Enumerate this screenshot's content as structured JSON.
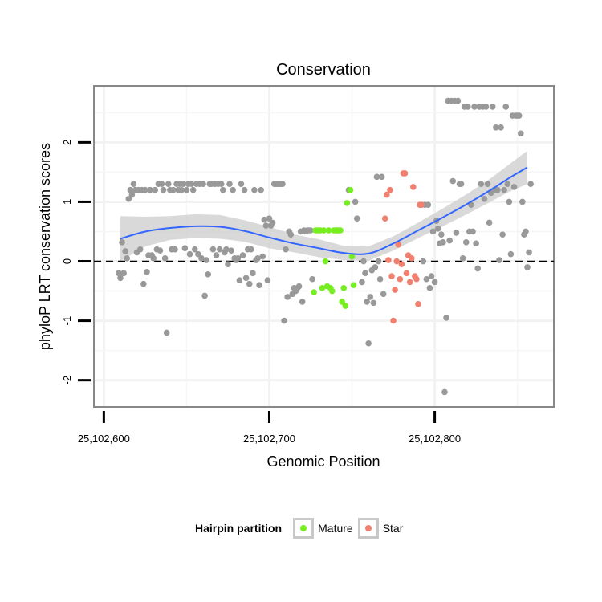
{
  "chart_data": {
    "type": "scatter",
    "title": "Conservation",
    "xlabel": "Genomic Position",
    "ylabel": "phyloP LRT conservation scores",
    "xlim": [
      25102594,
      25102872
    ],
    "ylim": [
      -2.45,
      2.95
    ],
    "x_ticks": [
      {
        "value": 25102600,
        "label": "25,102,600"
      },
      {
        "value": 25102700,
        "label": "25,102,700"
      },
      {
        "value": 25102800,
        "label": "25,102,800"
      }
    ],
    "y_ticks": [
      {
        "value": -2,
        "label": "-2"
      },
      {
        "value": -1,
        "label": "-1"
      },
      {
        "value": 0,
        "label": "0"
      },
      {
        "value": 1,
        "label": "1"
      },
      {
        "value": 2,
        "label": "2"
      }
    ],
    "reference_line": {
      "y": 0,
      "style": "dashed"
    },
    "colors": {
      "other": "#999999",
      "mature": "#77ee22",
      "star": "#f08070",
      "smooth": "#3366ff",
      "ribbon": "#cccccc",
      "panel_border": "#888888"
    },
    "series": [
      {
        "group": "other",
        "points": [
          [
            25102609,
            -0.2
          ],
          [
            25102610,
            -0.28
          ],
          [
            25102611,
            0.32
          ],
          [
            25102612,
            -0.2
          ],
          [
            25102613,
            0.17
          ],
          [
            25102614,
            0.05
          ],
          [
            25102615,
            1.05
          ],
          [
            25102616,
            1.2
          ],
          [
            25102617,
            1.12
          ],
          [
            25102618,
            1.3
          ],
          [
            25102619,
            1.2
          ],
          [
            25102620,
            0.15
          ],
          [
            25102621,
            1.2
          ],
          [
            25102622,
            0.2
          ],
          [
            25102623,
            1.2
          ],
          [
            25102624,
            -0.38
          ],
          [
            25102625,
            1.2
          ],
          [
            25102626,
            -0.18
          ],
          [
            25102627,
            0.1
          ],
          [
            25102628,
            1.2
          ],
          [
            25102629,
            0.1
          ],
          [
            25102630,
            0.05
          ],
          [
            25102631,
            1.2
          ],
          [
            25102632,
            0.2
          ],
          [
            25102633,
            1.3
          ],
          [
            25102634,
            0.18
          ],
          [
            25102635,
            1.3
          ],
          [
            25102636,
            1.2
          ],
          [
            25102637,
            0.05
          ],
          [
            25102638,
            -1.2
          ],
          [
            25102639,
            1.3
          ],
          [
            25102640,
            1.2
          ],
          [
            25102641,
            0.2
          ],
          [
            25102642,
            1.2
          ],
          [
            25102643,
            0.2
          ],
          [
            25102644,
            1.3
          ],
          [
            25102645,
            1.2
          ],
          [
            25102646,
            1.3
          ],
          [
            25102647,
            1.2
          ],
          [
            25102648,
            1.3
          ],
          [
            25102649,
            0.22
          ],
          [
            25102650,
            1.2
          ],
          [
            25102651,
            1.3
          ],
          [
            25102652,
            0.12
          ],
          [
            25102653,
            1.3
          ],
          [
            25102654,
            1.2
          ],
          [
            25102655,
            0.2
          ],
          [
            25102656,
            1.3
          ],
          [
            25102657,
            0.12
          ],
          [
            25102658,
            1.3
          ],
          [
            25102659,
            0.05
          ],
          [
            25102660,
            1.3
          ],
          [
            25102661,
            -0.58
          ],
          [
            25102662,
            0.02
          ],
          [
            25102663,
            -0.22
          ],
          [
            25102664,
            1.3
          ],
          [
            25102665,
            1.3
          ],
          [
            25102666,
            0.2
          ],
          [
            25102667,
            1.3
          ],
          [
            25102668,
            0.1
          ],
          [
            25102669,
            1.3
          ],
          [
            25102670,
            0.2
          ],
          [
            25102671,
            1.3
          ],
          [
            25102672,
            1.2
          ],
          [
            25102673,
            0.15
          ],
          [
            25102674,
            0.2
          ],
          [
            25102675,
            -0.05
          ],
          [
            25102676,
            1.3
          ],
          [
            25102677,
            0.18
          ],
          [
            25102678,
            1.2
          ],
          [
            25102679,
            0.05
          ],
          [
            25102680,
            0.02
          ],
          [
            25102681,
            0.05
          ],
          [
            25102682,
            -0.32
          ],
          [
            25102683,
            1.3
          ],
          [
            25102684,
            0.1
          ],
          [
            25102685,
            1.2
          ],
          [
            25102686,
            -0.28
          ],
          [
            25102687,
            0.2
          ],
          [
            25102688,
            -0.38
          ],
          [
            25102689,
            0.2
          ],
          [
            25102690,
            -0.2
          ],
          [
            25102691,
            1.2
          ],
          [
            25102692,
            0.02
          ],
          [
            25102693,
            0.05
          ],
          [
            25102694,
            -0.4
          ],
          [
            25102695,
            1.2
          ],
          [
            25102696,
            0.08
          ],
          [
            25102697,
            0.7
          ],
          [
            25102698,
            0.6
          ],
          [
            25102699,
            -0.32
          ],
          [
            25102700,
            0.72
          ],
          [
            25102701,
            0.6
          ],
          [
            25102702,
            0.65
          ],
          [
            25102703,
            1.3
          ],
          [
            25102704,
            1.3
          ],
          [
            25102705,
            1.3
          ],
          [
            25102706,
            1.3
          ],
          [
            25102707,
            1.3
          ],
          [
            25102708,
            1.3
          ],
          [
            25102709,
            -1.0
          ],
          [
            25102710,
            0.2
          ],
          [
            25102711,
            -0.6
          ],
          [
            25102712,
            0.5
          ],
          [
            25102713,
            0.45
          ],
          [
            25102714,
            -0.55
          ],
          [
            25102715,
            -0.45
          ],
          [
            25102716,
            -0.5
          ],
          [
            25102717,
            -0.45
          ],
          [
            25102718,
            -0.42
          ],
          [
            25102719,
            0.5
          ],
          [
            25102720,
            -0.68
          ],
          [
            25102721,
            0.52
          ],
          [
            25102722,
            0.5
          ],
          [
            25102723,
            0.52
          ],
          [
            25102724,
            0.52
          ],
          [
            25102725,
            0.52
          ],
          [
            25102726,
            -0.3
          ],
          [
            25102741,
            0.52
          ],
          [
            25102748,
            1.2
          ],
          [
            25102752,
            1.0
          ],
          [
            25102753,
            0.72
          ],
          [
            25102756,
            -0.35
          ],
          [
            25102757,
            0.0
          ],
          [
            25102758,
            -0.2
          ],
          [
            25102759,
            -0.68
          ],
          [
            25102760,
            -1.38
          ],
          [
            25102761,
            -0.6
          ],
          [
            25102762,
            -0.15
          ],
          [
            25102763,
            -0.7
          ],
          [
            25102764,
            -0.1
          ],
          [
            25102765,
            1.42
          ],
          [
            25102766,
            0.0
          ],
          [
            25102767,
            -0.3
          ],
          [
            25102768,
            1.42
          ],
          [
            25102769,
            -0.55
          ],
          [
            25102793,
            0.0
          ],
          [
            25102794,
            0.95
          ],
          [
            25102795,
            -0.3
          ],
          [
            25102796,
            0.95
          ],
          [
            25102797,
            -0.45
          ],
          [
            25102798,
            -0.25
          ],
          [
            25102799,
            0.5
          ],
          [
            25102800,
            -0.35
          ],
          [
            25102801,
            0.68
          ],
          [
            25102802,
            0.55
          ],
          [
            25102803,
            0.3
          ],
          [
            25102804,
            0.45
          ],
          [
            25102805,
            0.32
          ],
          [
            25102806,
            -2.2
          ],
          [
            25102807,
            -0.95
          ],
          [
            25102808,
            2.7
          ],
          [
            25102809,
            0.35
          ],
          [
            25102810,
            2.7
          ],
          [
            25102811,
            1.35
          ],
          [
            25102812,
            2.7
          ],
          [
            25102813,
            0.48
          ],
          [
            25102814,
            2.7
          ],
          [
            25102815,
            1.3
          ],
          [
            25102816,
            1.3
          ],
          [
            25102817,
            0.05
          ],
          [
            25102818,
            2.6
          ],
          [
            25102819,
            0.32
          ],
          [
            25102820,
            2.6
          ],
          [
            25102821,
            0.5
          ],
          [
            25102822,
            0.95
          ],
          [
            25102823,
            0.5
          ],
          [
            25102824,
            2.6
          ],
          [
            25102825,
            0.3
          ],
          [
            25102826,
            -0.12
          ],
          [
            25102827,
            2.6
          ],
          [
            25102828,
            1.3
          ],
          [
            25102829,
            2.6
          ],
          [
            25102830,
            1.05
          ],
          [
            25102831,
            2.6
          ],
          [
            25102832,
            1.3
          ],
          [
            25102833,
            0.65
          ],
          [
            25102834,
            1.15
          ],
          [
            25102835,
            2.6
          ],
          [
            25102836,
            1.2
          ],
          [
            25102837,
            2.25
          ],
          [
            25102838,
            1.2
          ],
          [
            25102839,
            0.02
          ],
          [
            25102840,
            2.25
          ],
          [
            25102841,
            0.45
          ],
          [
            25102842,
            1.2
          ],
          [
            25102843,
            2.6
          ],
          [
            25102844,
            1.3
          ],
          [
            25102845,
            1.0
          ],
          [
            25102846,
            0.12
          ],
          [
            25102847,
            2.45
          ],
          [
            25102848,
            1.25
          ],
          [
            25102849,
            2.45
          ],
          [
            25102850,
            2.45
          ],
          [
            25102851,
            2.45
          ],
          [
            25102852,
            2.15
          ],
          [
            25102853,
            1.0
          ],
          [
            25102854,
            0.45
          ],
          [
            25102855,
            0.5
          ],
          [
            25102856,
            -0.1
          ],
          [
            25102857,
            0.15
          ],
          [
            25102858,
            1.3
          ]
        ]
      },
      {
        "group": "mature",
        "points": [
          [
            25102727,
            -0.52
          ],
          [
            25102728,
            0.52
          ],
          [
            25102729,
            0.52
          ],
          [
            25102730,
            0.52
          ],
          [
            25102731,
            0.52
          ],
          [
            25102732,
            -0.45
          ],
          [
            25102733,
            0.52
          ],
          [
            25102734,
            0.0
          ],
          [
            25102735,
            -0.42
          ],
          [
            25102736,
            0.52
          ],
          [
            25102737,
            -0.45
          ],
          [
            25102738,
            -0.5
          ],
          [
            25102739,
            0.52
          ],
          [
            25102740,
            0.52
          ],
          [
            25102742,
            0.52
          ],
          [
            25102743,
            0.52
          ],
          [
            25102744,
            -0.68
          ],
          [
            25102745,
            -0.45
          ],
          [
            25102746,
            -0.75
          ],
          [
            25102747,
            0.98
          ],
          [
            25102749,
            1.2
          ],
          [
            25102750,
            0.08
          ],
          [
            25102751,
            -0.4
          ]
        ]
      },
      {
        "group": "star",
        "points": [
          [
            25102770,
            0.72
          ],
          [
            25102771,
            1.12
          ],
          [
            25102772,
            0.02
          ],
          [
            25102773,
            1.2
          ],
          [
            25102774,
            -0.25
          ],
          [
            25102775,
            -1.0
          ],
          [
            25102776,
            -0.48
          ],
          [
            25102777,
            0.0
          ],
          [
            25102778,
            0.28
          ],
          [
            25102779,
            -0.3
          ],
          [
            25102780,
            -0.05
          ],
          [
            25102781,
            1.48
          ],
          [
            25102782,
            1.48
          ],
          [
            25102783,
            -0.2
          ],
          [
            25102784,
            0.1
          ],
          [
            25102785,
            -0.35
          ],
          [
            25102786,
            0.05
          ],
          [
            25102787,
            1.25
          ],
          [
            25102788,
            -0.25
          ],
          [
            25102789,
            -0.3
          ],
          [
            25102790,
            -0.72
          ],
          [
            25102791,
            0.95
          ],
          [
            25102792,
            0.95
          ]
        ]
      }
    ],
    "smooth_fit": [
      [
        25102610,
        0.38
      ],
      [
        25102625,
        0.5
      ],
      [
        25102640,
        0.56
      ],
      [
        25102655,
        0.59
      ],
      [
        25102670,
        0.58
      ],
      [
        25102685,
        0.51
      ],
      [
        25102700,
        0.4
      ],
      [
        25102715,
        0.3
      ],
      [
        25102730,
        0.22
      ],
      [
        25102745,
        0.14
      ],
      [
        25102760,
        0.13
      ],
      [
        25102775,
        0.3
      ],
      [
        25102790,
        0.52
      ],
      [
        25102805,
        0.74
      ],
      [
        25102820,
        0.97
      ],
      [
        25102835,
        1.22
      ],
      [
        25102845,
        1.4
      ],
      [
        25102856,
        1.58
      ]
    ],
    "ribbon_halfwidth": [
      0.38,
      0.25,
      0.2,
      0.2,
      0.2,
      0.18,
      0.18,
      0.15,
      0.15,
      0.12,
      0.12,
      0.12,
      0.13,
      0.15,
      0.17,
      0.2,
      0.23,
      0.28
    ]
  },
  "legend": {
    "title": "Hairpin partition",
    "items": [
      {
        "label": "Mature",
        "color": "#77ee22"
      },
      {
        "label": "Star",
        "color": "#f08070"
      }
    ]
  }
}
